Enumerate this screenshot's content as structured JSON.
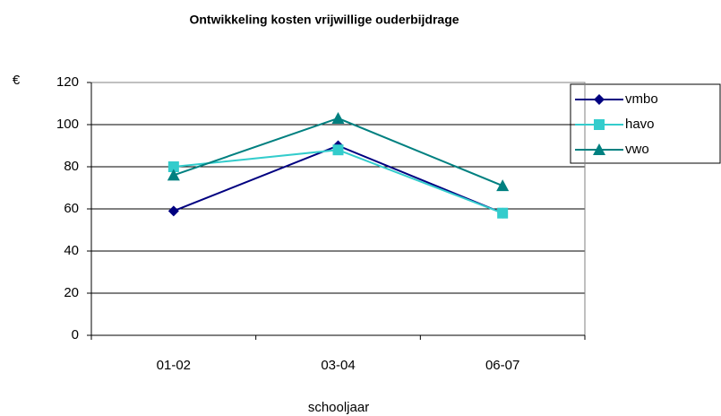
{
  "chart_data": {
    "type": "line",
    "title": "Ontwikkeling kosten vrijwillige ouderbijdrage",
    "y_label": "€",
    "x_label": "schooljaar",
    "categories": [
      "01-02",
      "03-04",
      "06-07"
    ],
    "series": [
      {
        "name": "vmbo",
        "color": "#000080",
        "marker": "diamond",
        "values": [
          59,
          90,
          58
        ]
      },
      {
        "name": "havo",
        "color": "#33cccc",
        "marker": "square",
        "values": [
          80,
          88,
          58
        ]
      },
      {
        "name": "vwo",
        "color": "#008080",
        "marker": "triangle",
        "values": [
          76,
          103,
          71
        ]
      }
    ],
    "ylim": [
      0,
      120
    ],
    "yticks": [
      0,
      20,
      40,
      60,
      80,
      100,
      120
    ],
    "grid": true
  }
}
